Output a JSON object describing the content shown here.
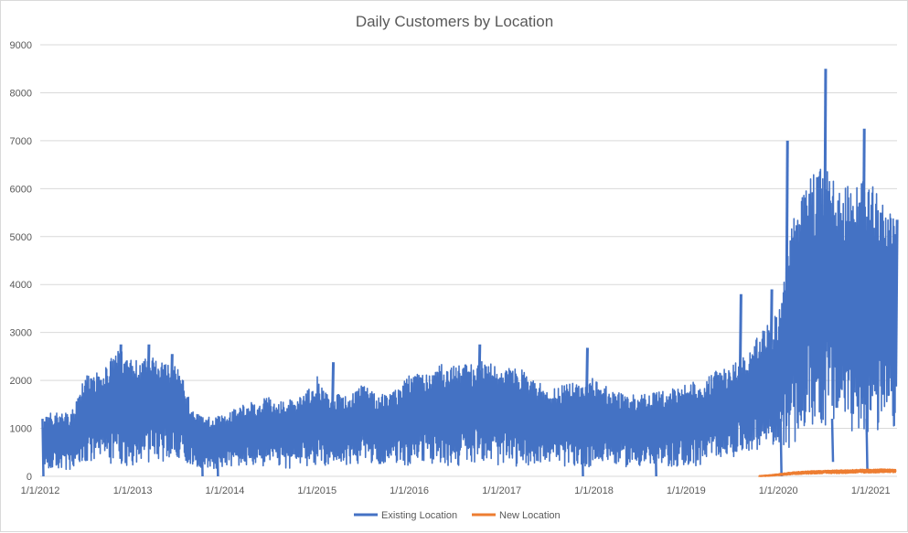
{
  "chart_data": {
    "type": "line",
    "title": "Daily Customers by Location",
    "xlabel": "",
    "ylabel": "",
    "ylim": [
      0,
      9000
    ],
    "yticks": [
      0,
      1000,
      2000,
      3000,
      4000,
      5000,
      6000,
      7000,
      8000,
      9000
    ],
    "xlim": [
      "2012-01-01",
      "2021-04-15"
    ],
    "xticks": [
      "1/1/2012",
      "1/1/2013",
      "1/1/2014",
      "1/1/2015",
      "1/1/2016",
      "1/1/2017",
      "1/1/2018",
      "1/1/2019",
      "1/1/2020",
      "1/1/2021"
    ],
    "grid": "horizontal",
    "legend_position": "bottom",
    "series": [
      {
        "name": "Existing Location",
        "color": "#4472C4",
        "x": [
          "2012-01-15",
          "2012-03-01",
          "2012-05-01",
          "2012-07-01",
          "2012-09-01",
          "2012-11-01",
          "2013-01-01",
          "2013-03-01",
          "2013-05-01",
          "2013-07-01",
          "2013-09-01",
          "2013-11-01",
          "2014-01-01",
          "2014-03-01",
          "2014-05-01",
          "2014-07-01",
          "2014-09-01",
          "2014-11-01",
          "2015-01-01",
          "2015-03-01",
          "2015-05-01",
          "2015-07-01",
          "2015-09-01",
          "2015-11-01",
          "2016-01-01",
          "2016-03-01",
          "2016-05-01",
          "2016-07-01",
          "2016-09-01",
          "2016-11-01",
          "2017-01-01",
          "2017-03-01",
          "2017-05-01",
          "2017-07-01",
          "2017-09-01",
          "2017-11-01",
          "2018-01-01",
          "2018-03-01",
          "2018-05-01",
          "2018-07-01",
          "2018-09-01",
          "2018-11-01",
          "2019-01-01",
          "2019-03-01",
          "2019-05-01",
          "2019-07-01",
          "2019-09-01",
          "2019-11-01",
          "2020-01-01",
          "2020-03-01",
          "2020-05-01",
          "2020-07-01",
          "2020-09-01",
          "2020-11-01",
          "2021-01-01",
          "2021-03-01",
          "2021-04-10"
        ],
        "high": [
          1300,
          1350,
          1300,
          2200,
          2150,
          2700,
          2400,
          2500,
          2450,
          2300,
          1300,
          1250,
          1300,
          1500,
          1550,
          1700,
          1600,
          1650,
          2100,
          1700,
          1800,
          1900,
          1700,
          1800,
          2100,
          2200,
          2350,
          2300,
          2350,
          2450,
          2200,
          2300,
          2100,
          1800,
          1900,
          2000,
          2050,
          1850,
          1700,
          1700,
          1750,
          1800,
          2000,
          1950,
          2200,
          2300,
          2650,
          3100,
          3400,
          5400,
          6200,
          6500,
          6100,
          6000,
          6300,
          5800,
          5350
        ],
        "low": [
          100,
          150,
          100,
          200,
          300,
          250,
          200,
          300,
          300,
          400,
          200,
          150,
          200,
          200,
          200,
          200,
          150,
          200,
          200,
          250,
          200,
          300,
          250,
          300,
          200,
          300,
          200,
          200,
          300,
          300,
          200,
          200,
          250,
          300,
          200,
          200,
          200,
          300,
          200,
          200,
          200,
          200,
          200,
          200,
          400,
          400,
          500,
          600,
          600,
          600,
          1000,
          1000,
          1000,
          900,
          800,
          900,
          900
        ],
        "peaks": [
          {
            "x": "2012-11-10",
            "y": 2750
          },
          {
            "x": "2013-03-01",
            "y": 2750
          },
          {
            "x": "2013-06-01",
            "y": 2550
          },
          {
            "x": "2015-03-01",
            "y": 2380
          },
          {
            "x": "2016-10-01",
            "y": 2750
          },
          {
            "x": "2017-12-01",
            "y": 2680
          },
          {
            "x": "2019-08-01",
            "y": 3800
          },
          {
            "x": "2019-12-01",
            "y": 3900
          },
          {
            "x": "2020-02-01",
            "y": 7000
          },
          {
            "x": "2020-07-01",
            "y": 8500
          },
          {
            "x": "2020-12-01",
            "y": 7250
          },
          {
            "x": "2021-04-10",
            "y": 5350
          }
        ],
        "dips": [
          {
            "x": "2012-01-10",
            "y": 0
          },
          {
            "x": "2013-10-01",
            "y": 0
          },
          {
            "x": "2013-12-01",
            "y": 0
          },
          {
            "x": "2017-11-15",
            "y": 0
          },
          {
            "x": "2018-09-01",
            "y": 0
          },
          {
            "x": "2020-01-10",
            "y": 0
          },
          {
            "x": "2020-08-01",
            "y": 300
          },
          {
            "x": "2020-12-15",
            "y": 100
          }
        ]
      },
      {
        "name": "New Location",
        "color": "#ED7D31",
        "x": [
          "2019-10-15",
          "2019-12-01",
          "2020-01-15",
          "2020-03-01",
          "2020-05-01",
          "2020-07-01",
          "2020-09-01",
          "2020-11-01",
          "2021-01-01",
          "2021-03-01",
          "2021-04-10"
        ],
        "high": [
          10,
          30,
          60,
          90,
          110,
          120,
          130,
          140,
          150,
          150,
          140
        ],
        "low": [
          0,
          5,
          20,
          40,
          50,
          60,
          60,
          70,
          70,
          80,
          80
        ]
      }
    ]
  }
}
